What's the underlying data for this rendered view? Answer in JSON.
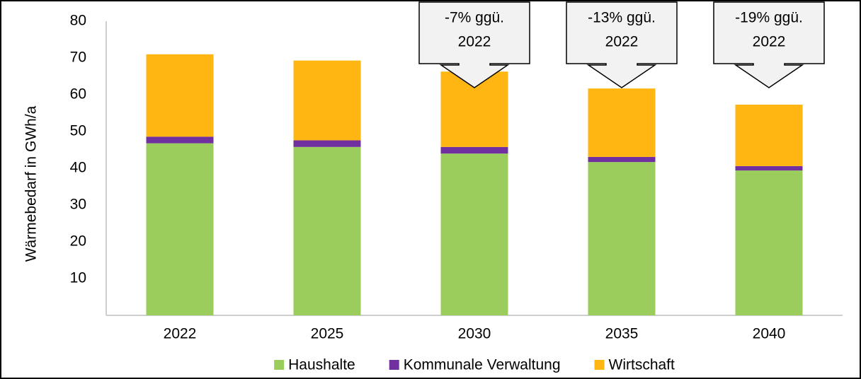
{
  "chart_data": {
    "type": "stacked_bar",
    "categories": [
      "2022",
      "2025",
      "2030",
      "2035",
      "2040"
    ],
    "series": [
      {
        "name": "Haushalte",
        "color": "#9bcd5c",
        "values": [
          46.8,
          45.8,
          44.0,
          41.7,
          39.4
        ]
      },
      {
        "name": "Kommunale Verwaltung",
        "color": "#7030a0",
        "values": [
          1.8,
          1.8,
          1.8,
          1.4,
          1.2
        ]
      },
      {
        "name": "Wirtschaft",
        "color": "#ffb612",
        "values": [
          22.4,
          21.7,
          20.5,
          18.6,
          16.7
        ]
      }
    ],
    "y_label": "Wärmebedarf in GWh/a",
    "ylim": [
      0,
      80
    ],
    "yticks": [
      10,
      20,
      30,
      40,
      50,
      60,
      70,
      80
    ],
    "grid": false,
    "legend": "bottom",
    "annotations": [
      {
        "category": 2,
        "lines": [
          "-7% ggü.",
          "2022"
        ]
      },
      {
        "category": 3,
        "lines": [
          "-13% ggü.",
          "2022"
        ]
      },
      {
        "category": 4,
        "lines": [
          "-19% ggü.",
          "2022"
        ]
      }
    ]
  }
}
